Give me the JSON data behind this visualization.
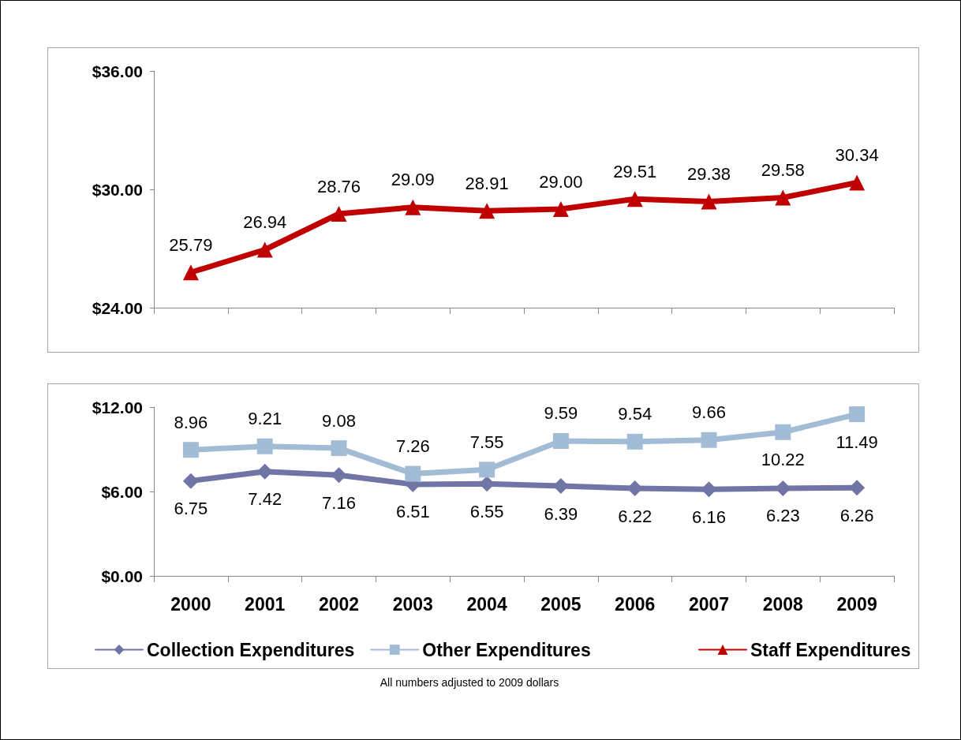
{
  "chart_data": [
    {
      "type": "line",
      "categories": [
        "2000",
        "2001",
        "2002",
        "2003",
        "2004",
        "2005",
        "2006",
        "2007",
        "2008",
        "2009"
      ],
      "ylim": [
        24,
        36
      ],
      "yticks": [
        {
          "value": 24,
          "label": "$24.00"
        },
        {
          "value": 30,
          "label": "$30.00"
        },
        {
          "value": 36,
          "label": "$36.00"
        }
      ],
      "tick_labels": "y",
      "grid": false,
      "legend": "bottom",
      "line_style": "solid",
      "series": [
        {
          "name": "Staff Expenditures",
          "color": "#c00000",
          "marker": "triangle",
          "values": [
            25.79,
            26.94,
            28.76,
            29.09,
            28.91,
            29.0,
            29.51,
            29.38,
            29.58,
            30.34
          ],
          "value_labels": [
            "25.79",
            "26.94",
            "28.76",
            "29.09",
            "28.91",
            "29.00",
            "29.51",
            "29.38",
            "29.58",
            "30.34"
          ]
        }
      ]
    },
    {
      "type": "line",
      "categories": [
        "2000",
        "2001",
        "2002",
        "2003",
        "2004",
        "2005",
        "2006",
        "2007",
        "2008",
        "2009"
      ],
      "ylim": [
        0,
        12
      ],
      "yticks": [
        {
          "value": 0,
          "label": "$0.00"
        },
        {
          "value": 6,
          "label": "$6.00"
        },
        {
          "value": 12,
          "label": "$12.00"
        }
      ],
      "grid": false,
      "legend": "bottom",
      "data_labels": true,
      "line_style": "solid",
      "annotations": [
        "All numbers adjusted to 2009 dollars"
      ],
      "series": [
        {
          "name": "Collection Expenditures",
          "color": "#7075a6",
          "marker": "diamond",
          "values": [
            6.75,
            7.42,
            7.16,
            6.51,
            6.55,
            6.39,
            6.22,
            6.16,
            6.23,
            6.26
          ]
        },
        {
          "name": "Other Expenditures",
          "color": "#a3bcd6",
          "marker": "square",
          "values": [
            8.96,
            9.21,
            9.08,
            7.26,
            7.55,
            9.59,
            9.54,
            9.66,
            10.22,
            11.49
          ]
        }
      ]
    }
  ]
}
